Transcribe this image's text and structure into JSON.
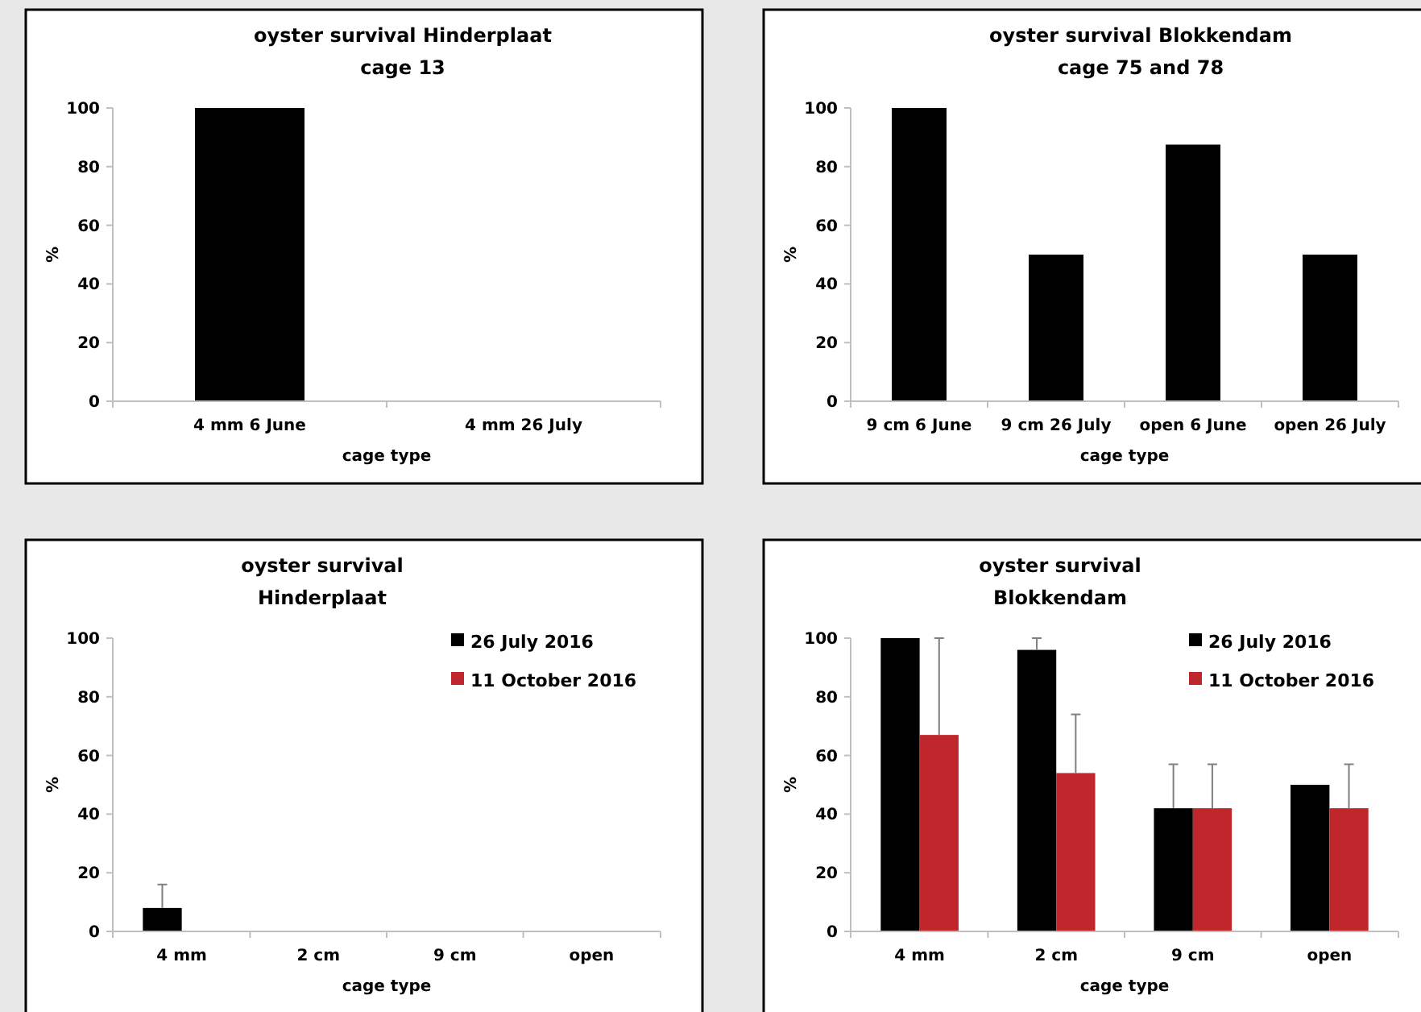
{
  "chart_data": [
    {
      "type": "bar",
      "title": "oyster survival Hinderplaat",
      "subtitle": "cage 13",
      "xlabel": "cage type",
      "ylabel": "%",
      "categories": [
        "4 mm 6 June",
        "4 mm 26 July"
      ],
      "series": [
        {
          "color": "#000000",
          "values": [
            100,
            0
          ]
        }
      ],
      "ylim": [
        0,
        100
      ],
      "yticks": [
        0,
        20,
        40,
        60,
        80,
        100
      ],
      "grid": false,
      "legend": false
    },
    {
      "type": "bar",
      "title": "oyster survival Blokkendam",
      "subtitle": "cage 75 and 78",
      "xlabel": "cage type",
      "ylabel": "%",
      "categories": [
        "9 cm 6 June",
        "9 cm 26 July",
        "open 6 June",
        "open 26 July"
      ],
      "series": [
        {
          "color": "#000000",
          "values": [
            100,
            50,
            87.5,
            50
          ]
        }
      ],
      "ylim": [
        0,
        100
      ],
      "yticks": [
        0,
        20,
        40,
        60,
        80,
        100
      ],
      "grid": false,
      "legend": false
    },
    {
      "type": "bar",
      "title": "oyster survival Hinderplaat",
      "xlabel": "cage type",
      "ylabel": "%",
      "categories": [
        "4 mm",
        "2 cm",
        "9 cm",
        "open"
      ],
      "series": [
        {
          "name": "26 July 2016",
          "color": "#000000",
          "values": [
            8,
            0,
            0,
            0
          ],
          "errors": [
            [
              8,
              16
            ],
            null,
            null,
            null
          ]
        },
        {
          "name": "11 October 2016",
          "color": "#c0272d",
          "values": [
            0,
            0,
            0,
            0
          ]
        }
      ],
      "ylim": [
        0,
        100
      ],
      "yticks": [
        0,
        20,
        40,
        60,
        80,
        100
      ],
      "grid": false,
      "legend": "top right"
    },
    {
      "type": "bar",
      "title": "oyster survival Blokkendam",
      "xlabel": "cage type",
      "ylabel": "%",
      "categories": [
        "4 mm",
        "2 cm",
        "9 cm",
        "open"
      ],
      "series": [
        {
          "name": "26 July 2016",
          "color": "#000000",
          "values": [
            100,
            96,
            42,
            50
          ],
          "errors": [
            null,
            [
              96,
              100
            ],
            [
              42,
              57
            ],
            null
          ]
        },
        {
          "name": "11 October 2016",
          "color": "#c0272d",
          "values": [
            67,
            54,
            42,
            42
          ],
          "errors": [
            [
              67,
              100
            ],
            [
              54,
              74
            ],
            [
              42,
              57
            ],
            [
              42,
              57
            ]
          ]
        }
      ],
      "ylim": [
        0,
        100
      ],
      "yticks": [
        0,
        20,
        40,
        60,
        80,
        100
      ],
      "grid": false,
      "legend": "top right"
    }
  ]
}
